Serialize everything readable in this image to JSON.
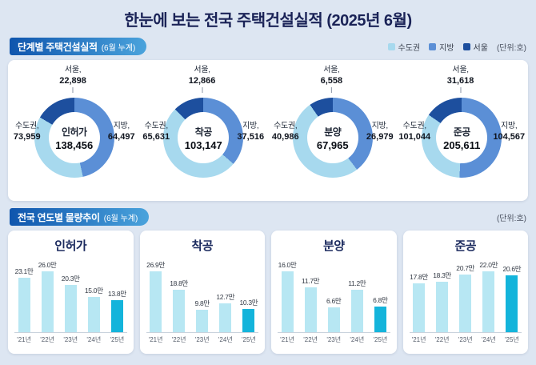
{
  "page": {
    "title": "한눈에 보는 전국 주택건설실적 (2025년 6월)"
  },
  "section1": {
    "banner_title": "단계별 주택건설실적",
    "banner_sub": "(6월 누계)",
    "unit_label": "(단위:호)",
    "legend": [
      {
        "label": "수도권",
        "color": "#a7d9ee"
      },
      {
        "label": "지방",
        "color": "#5b8fd6"
      },
      {
        "label": "서울",
        "color": "#1d4f9e"
      }
    ],
    "colors": {
      "sudogwon": "#a7d9ee",
      "jibang": "#5b8fd6",
      "seoul": "#1d4f9e"
    },
    "donuts": [
      {
        "name": "인허가",
        "total_text": "138,456",
        "labels": {
          "seoul": "서울,",
          "sudogwon": "수도권,",
          "jibang": "지방,"
        },
        "values_text": {
          "seoul": "22,898",
          "sudogwon": "73,959",
          "jibang": "64,497"
        },
        "values": {
          "seoul": 22898,
          "sudogwon": 73959,
          "jibang": 64497
        }
      },
      {
        "name": "착공",
        "total_text": "103,147",
        "labels": {
          "seoul": "서울,",
          "sudogwon": "수도권,",
          "jibang": "지방,"
        },
        "values_text": {
          "seoul": "12,866",
          "sudogwon": "65,631",
          "jibang": "37,516"
        },
        "values": {
          "seoul": 12866,
          "sudogwon": 65631,
          "jibang": 37516
        }
      },
      {
        "name": "분양",
        "total_text": "67,965",
        "labels": {
          "seoul": "서울,",
          "sudogwon": "수도권,",
          "jibang": "지방,"
        },
        "values_text": {
          "seoul": "6,558",
          "sudogwon": "40,986",
          "jibang": "26,979"
        },
        "values": {
          "seoul": 6558,
          "sudogwon": 40986,
          "jibang": 26979
        }
      },
      {
        "name": "준공",
        "total_text": "205,611",
        "labels": {
          "seoul": "서울,",
          "sudogwon": "수도권,",
          "jibang": "지방,"
        },
        "values_text": {
          "seoul": "31,618",
          "sudogwon": "101,044",
          "jibang": "104,567"
        },
        "values": {
          "seoul": 31618,
          "sudogwon": 101044,
          "jibang": 104567
        }
      }
    ]
  },
  "section2": {
    "banner_title": "전국 연도별 물량추이",
    "banner_sub": "(6월 누계)",
    "unit_label": "(단위:호)",
    "years": [
      "'21년",
      "'22년",
      "'23년",
      "'24년",
      "'25년"
    ],
    "bar_color": "#b7e7f3",
    "bar_highlight_color": "#14b4db",
    "charts": [
      {
        "title": "인허가",
        "values": [
          23.1,
          26.0,
          20.3,
          15.0,
          13.8
        ],
        "labels": [
          "23.1만",
          "26.0만",
          "20.3만",
          "15.0만",
          "13.8만"
        ]
      },
      {
        "title": "착공",
        "values": [
          26.9,
          18.8,
          9.8,
          12.7,
          10.3
        ],
        "labels": [
          "26.9만",
          "18.8만",
          "9.8만",
          "12.7만",
          "10.3만"
        ]
      },
      {
        "title": "분양",
        "values": [
          16.0,
          11.7,
          6.6,
          11.2,
          6.8
        ],
        "labels": [
          "16.0만",
          "11.7만",
          "6.6만",
          "11.2만",
          "6.8만"
        ]
      },
      {
        "title": "준공",
        "values": [
          17.8,
          18.3,
          20.7,
          22.0,
          20.6
        ],
        "labels": [
          "17.8만",
          "18.3만",
          "20.7만",
          "22.0만",
          "20.6만"
        ]
      }
    ]
  },
  "chart_data": [
    {
      "type": "pie",
      "title": "인허가",
      "total": 138456,
      "unit": "호",
      "slices": [
        {
          "label": "수도권",
          "value": 73959
        },
        {
          "label": "서울",
          "value": 22898
        },
        {
          "label": "지방",
          "value": 64497
        }
      ]
    },
    {
      "type": "pie",
      "title": "착공",
      "total": 103147,
      "unit": "호",
      "slices": [
        {
          "label": "수도권",
          "value": 65631
        },
        {
          "label": "서울",
          "value": 12866
        },
        {
          "label": "지방",
          "value": 37516
        }
      ]
    },
    {
      "type": "pie",
      "title": "분양",
      "total": 67965,
      "unit": "호",
      "slices": [
        {
          "label": "수도권",
          "value": 40986
        },
        {
          "label": "서울",
          "value": 6558
        },
        {
          "label": "지방",
          "value": 26979
        }
      ]
    },
    {
      "type": "pie",
      "title": "준공",
      "total": 205611,
      "unit": "호",
      "slices": [
        {
          "label": "수도권",
          "value": 101044
        },
        {
          "label": "서울",
          "value": 31618
        },
        {
          "label": "지방",
          "value": 104567
        }
      ]
    },
    {
      "type": "bar",
      "title": "인허가",
      "categories": [
        "'21년",
        "'22년",
        "'23년",
        "'24년",
        "'25년"
      ],
      "values": [
        23.1,
        26.0,
        20.3,
        15.0,
        13.8
      ],
      "unit": "만 호",
      "ylim": [
        0,
        27
      ],
      "grid": false
    },
    {
      "type": "bar",
      "title": "착공",
      "categories": [
        "'21년",
        "'22년",
        "'23년",
        "'24년",
        "'25년"
      ],
      "values": [
        26.9,
        18.8,
        9.8,
        12.7,
        10.3
      ],
      "unit": "만 호",
      "ylim": [
        0,
        27
      ],
      "grid": false
    },
    {
      "type": "bar",
      "title": "분양",
      "categories": [
        "'21년",
        "'22년",
        "'23년",
        "'24년",
        "'25년"
      ],
      "values": [
        16.0,
        11.7,
        6.6,
        11.2,
        6.8
      ],
      "unit": "만 호",
      "ylim": [
        0,
        17
      ],
      "grid": false
    },
    {
      "type": "bar",
      "title": "준공",
      "categories": [
        "'21년",
        "'22년",
        "'23년",
        "'24년",
        "'25년"
      ],
      "values": [
        17.8,
        18.3,
        20.7,
        22.0,
        20.6
      ],
      "unit": "만 호",
      "ylim": [
        0,
        23
      ],
      "grid": false
    }
  ]
}
